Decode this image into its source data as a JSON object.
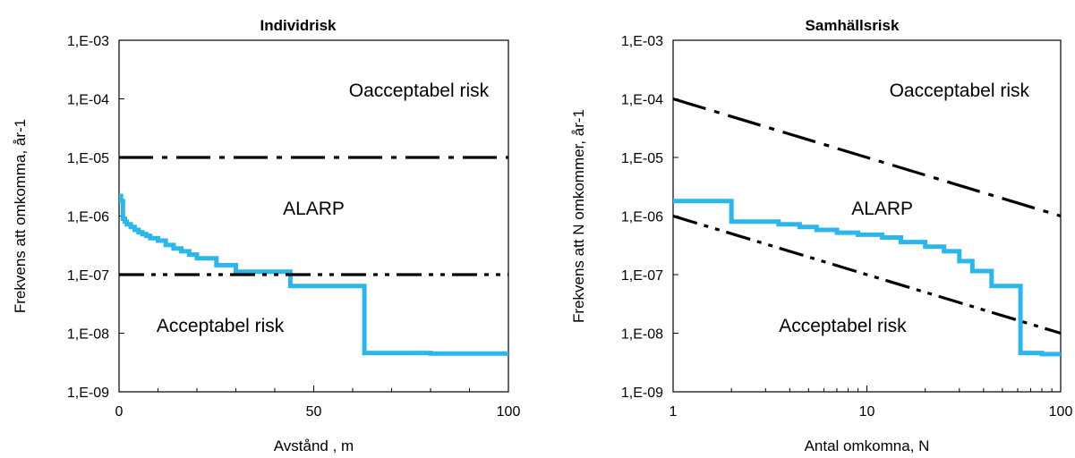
{
  "chart_data": [
    {
      "type": "line",
      "title": "Individrisk",
      "xlabel": "Avstånd , m",
      "ylabel": "Frekvens att omkomma, år-1",
      "x_scale": "linear",
      "y_scale": "log",
      "xlim": [
        0,
        100
      ],
      "ylim": [
        1e-09,
        0.001
      ],
      "x_ticks": [
        0,
        50,
        100
      ],
      "x_tick_labels": [
        "0",
        "50",
        "100"
      ],
      "y_ticks": [
        1e-09,
        1e-08,
        1e-07,
        1e-06,
        1e-05,
        0.0001,
        0.001
      ],
      "y_tick_labels": [
        "1,E-09",
        "1,E-08",
        "1,E-07",
        "1,E-06",
        "1,E-05",
        "1,E-04",
        "1,E-03"
      ],
      "grid": false,
      "legend": "none",
      "annotations": [
        {
          "text": "Oacceptabel risk",
          "x": 77,
          "y": 0.00011
        },
        {
          "text": "ALARP",
          "x": 50,
          "y": 1.05e-06
        },
        {
          "text": "Acceptabel risk",
          "x": 26,
          "y": 1.05e-08
        }
      ],
      "series": [
        {
          "style": "step",
          "color": "#2bb7ec",
          "width": 5,
          "x": [
            0,
            0.5,
            1,
            1.5,
            2,
            3,
            4,
            5,
            6,
            7,
            8,
            10,
            12,
            14,
            16,
            18,
            20,
            25,
            30,
            44,
            63,
            63,
            80,
            100
          ],
          "y": [
            2.2e-06,
            1.8e-06,
            9e-07,
            8e-07,
            7.2e-07,
            6.5e-07,
            5.8e-07,
            5.3e-07,
            4.9e-07,
            4.6e-07,
            4.2e-07,
            3.8e-07,
            3.2e-07,
            2.8e-07,
            2.5e-07,
            2.2e-07,
            1.9e-07,
            1.45e-07,
            1.12e-07,
            6.4e-08,
            6.4e-08,
            4.6e-09,
            4.5e-09,
            4.3e-09
          ]
        },
        {
          "style": "dashdot",
          "color": "#000000",
          "x": [
            0,
            100
          ],
          "y": [
            1e-05,
            1e-05
          ]
        },
        {
          "style": "dashdotdot",
          "color": "#000000",
          "x": [
            0,
            100
          ],
          "y": [
            1e-07,
            1e-07
          ]
        }
      ]
    },
    {
      "type": "line",
      "title": "Samhällsrisk",
      "xlabel": "Antal omkomna, N",
      "ylabel": "Frekvens att N omkommer, år-1",
      "x_scale": "log",
      "y_scale": "log",
      "xlim": [
        1,
        100
      ],
      "ylim": [
        1e-09,
        0.001
      ],
      "x_ticks": [
        1,
        10,
        100
      ],
      "x_tick_labels": [
        "1",
        "10",
        "100"
      ],
      "y_ticks": [
        1e-09,
        1e-08,
        1e-07,
        1e-06,
        1e-05,
        0.0001,
        0.001
      ],
      "y_tick_labels": [
        "1,E-09",
        "1,E-08",
        "1,E-07",
        "1,E-06",
        "1,E-05",
        "1,E-04",
        "1,E-03"
      ],
      "grid": false,
      "legend": "none",
      "annotations": [
        {
          "text": "Oacceptabel risk",
          "x": 30,
          "y": 0.00011
        },
        {
          "text": "ALARP",
          "x": 12,
          "y": 1.05e-06
        },
        {
          "text": "Acceptabel risk",
          "x": 7.5,
          "y": 1.05e-08
        }
      ],
      "series": [
        {
          "style": "step",
          "color": "#2bb7ec",
          "width": 5,
          "x": [
            1,
            2,
            3.5,
            4.5,
            5.5,
            7,
            9,
            12,
            15,
            20,
            25,
            30,
            35,
            44,
            60,
            62,
            80,
            100
          ],
          "y": [
            1.8e-06,
            8e-07,
            7.2e-07,
            6.5e-07,
            5.8e-07,
            5.2e-07,
            4.8e-07,
            4.3e-07,
            3.6e-07,
            3e-07,
            2.5e-07,
            1.7e-07,
            1.15e-07,
            6.4e-08,
            6.4e-08,
            4.6e-09,
            4.4e-09,
            4.3e-09
          ]
        },
        {
          "style": "dashdot",
          "color": "#000000",
          "x": [
            1,
            100
          ],
          "y": [
            0.0001,
            1e-06
          ]
        },
        {
          "style": "dashdotdot",
          "color": "#000000",
          "x": [
            1,
            100
          ],
          "y": [
            1e-06,
            1e-08
          ]
        }
      ]
    }
  ]
}
